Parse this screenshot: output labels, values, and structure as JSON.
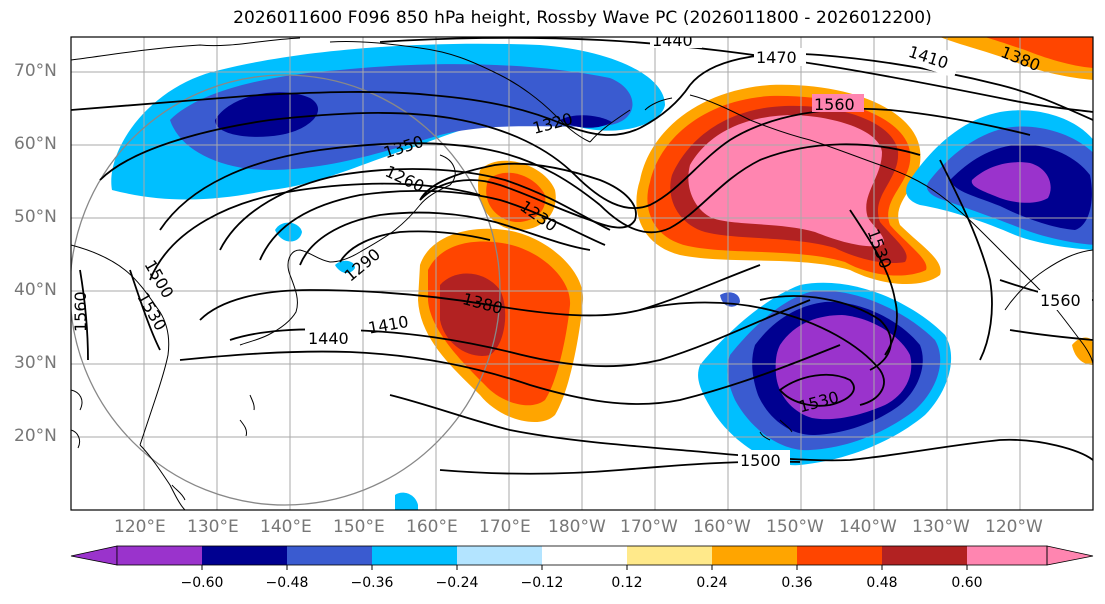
{
  "title": "2026011600 F096 850 hPa height, Rossby Wave PC (2026011800 - 2026012200)",
  "lat_labels": [
    "70°N",
    "60°N",
    "50°N",
    "40°N",
    "30°N",
    "20°N"
  ],
  "lon_labels": [
    "120°E",
    "130°E",
    "140°E",
    "150°E",
    "160°E",
    "170°E",
    "180°W",
    "170°W",
    "160°W",
    "150°W",
    "140°W",
    "130°W",
    "120°W"
  ],
  "contour_labels": [
    "1440",
    "1470",
    "1410",
    "1380",
    "1560",
    "1320",
    "1350",
    "1260",
    "1230",
    "1290",
    "1380",
    "1410",
    "1440",
    "1500",
    "1530",
    "1560",
    "1530",
    "1500",
    "1560",
    "1530"
  ],
  "colorbar": {
    "ticks": [
      "−0.60",
      "−0.48",
      "−0.36",
      "−0.24",
      "−0.12",
      "0.12",
      "0.24",
      "0.36",
      "0.48",
      "0.60"
    ],
    "colors": [
      "#9a33cc",
      "#000090",
      "#3a5bd0",
      "#00bfff",
      "#b3e4ff",
      "#ffffff",
      "#ffe98a",
      "#ffa500",
      "#ff4500",
      "#b22222",
      "#ff85b0"
    ]
  },
  "colors": {
    "neg_strong": "#9a33cc",
    "neg_dark": "#000090",
    "neg_mid": "#3a5bd0",
    "neg_light": "#00bfff",
    "neg_pale": "#b3e4ff",
    "pos_pale": "#ffe98a",
    "pos_light": "#ffa500",
    "pos_mid": "#ff4500",
    "pos_dark": "#b22222",
    "pos_strong": "#ff85b0"
  }
}
